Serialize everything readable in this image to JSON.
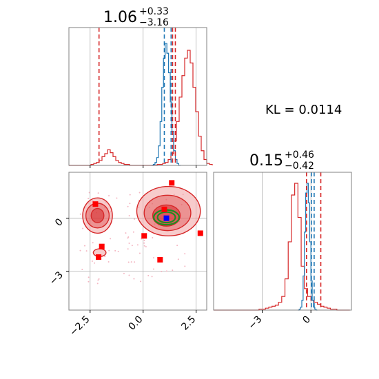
{
  "chart_data": {
    "type": "corner",
    "annotation": "KL = 0.0114",
    "params": [
      {
        "title_main": "1.06",
        "title_plus": "+0.33",
        "title_minus": "−3.16",
        "range": [
          -3.5,
          3.0
        ],
        "ticks": [
          -2.5,
          0.0,
          2.5
        ],
        "tick_labels": [
          "−2.5",
          "0.0",
          "2.5"
        ]
      },
      {
        "title_main": "0.15",
        "title_plus": "+0.46",
        "title_minus": "−0.42",
        "range": [
          -6.0,
          2.5
        ],
        "ticks": [
          -3,
          0
        ],
        "tick_labels": [
          "−3",
          "0"
        ]
      }
    ],
    "y_axis_2d": {
      "range": [
        -5.2,
        2.6
      ],
      "ticks": [
        0,
        -3
      ],
      "tick_labels": [
        "0",
        "−3"
      ]
    },
    "red_quantile_lines_p1": [
      -2.08,
      1.39,
      1.52
    ],
    "blue_quantile_lines_p1": [
      1.0,
      1.32
    ],
    "red_quantile_lines_p2": [
      -0.27,
      0.61
    ],
    "blue_quantile_lines_p2": [
      0.03,
      0.2
    ],
    "hist_p1_red": {
      "edges_start": -3.5,
      "bin_width": 0.13,
      "counts": [
        0,
        0,
        0,
        0,
        0,
        0,
        0,
        0,
        1,
        2,
        3,
        5,
        9,
        12,
        16,
        13,
        9,
        5,
        3,
        2,
        1,
        1,
        0,
        0,
        0,
        0,
        0,
        0,
        0,
        0,
        0,
        0,
        1,
        1,
        2,
        3,
        6,
        12,
        25,
        45,
        70,
        92,
        110,
        118,
        105,
        80,
        55,
        30,
        15,
        6,
        2,
        1
      ]
    },
    "hist_p1_blue": {
      "edges_start": 0.4,
      "bin_width": 0.08,
      "counts": [
        0,
        1,
        3,
        8,
        20,
        45,
        80,
        110,
        125,
        115,
        95,
        65,
        35,
        15,
        6,
        2,
        0
      ]
    },
    "hist_p2_red": {
      "edges_start": -6.0,
      "bin_width": 0.2,
      "counts": [
        0,
        0,
        0,
        0,
        0,
        0,
        0,
        0,
        0,
        0,
        0,
        0,
        0,
        0,
        1,
        1,
        2,
        3,
        4,
        5,
        8,
        14,
        32,
        70,
        118,
        130,
        95,
        45,
        22,
        14,
        10,
        8,
        6,
        4,
        3,
        2,
        1,
        1,
        0,
        0,
        0,
        0
      ]
    },
    "hist_p2_blue": {
      "edges_start": -0.8,
      "bin_width": 0.08,
      "counts": [
        0,
        1,
        3,
        10,
        35,
        80,
        120,
        130,
        110,
        70,
        30,
        10,
        3,
        1,
        0
      ]
    },
    "red_points": [
      [
        -2.25,
        0.8
      ],
      [
        1.35,
        2.0
      ],
      [
        1.0,
        0.5
      ],
      [
        0.05,
        -1.0
      ],
      [
        2.7,
        -0.85
      ],
      [
        -1.95,
        -1.6
      ],
      [
        -2.1,
        -2.2
      ],
      [
        0.8,
        -2.35
      ]
    ],
    "blue_point": [
      1.1,
      0.0
    ],
    "contours_red_outer": [
      {
        "cx": -2.15,
        "cy": 0.15,
        "rx": 0.7,
        "ry": 1.0
      },
      {
        "cx": 1.2,
        "cy": 0.4,
        "rx": 1.5,
        "ry": 1.4
      },
      {
        "cx": -2.05,
        "cy": -1.95,
        "rx": 0.3,
        "ry": 0.22
      }
    ],
    "contours_red_mid": [
      {
        "cx": -2.15,
        "cy": 0.15,
        "rx": 0.55,
        "ry": 0.7
      },
      {
        "cx": 1.15,
        "cy": 0.3,
        "rx": 1.1,
        "ry": 1.0
      }
    ],
    "contours_red_inner": [
      {
        "cx": -2.15,
        "cy": 0.15,
        "rx": 0.3,
        "ry": 0.4
      },
      {
        "cx": 1.1,
        "cy": 0.15,
        "rx": 0.65,
        "ry": 0.6
      }
    ],
    "contours_green": [
      {
        "cx": 1.1,
        "cy": 0.05,
        "rx": 0.42,
        "ry": 0.3
      },
      {
        "cx": 1.1,
        "cy": 0.05,
        "rx": 0.6,
        "ry": 0.42
      }
    ],
    "colors": {
      "red": "#d62728",
      "red_fill": "#f0a0a0",
      "blue": "#1f77b4",
      "green": "#228b22",
      "marker_red": "#ff0000",
      "marker_blue": "#0000ff",
      "scatter": "#f4b6c2",
      "grid": "#b0b0b0"
    }
  }
}
